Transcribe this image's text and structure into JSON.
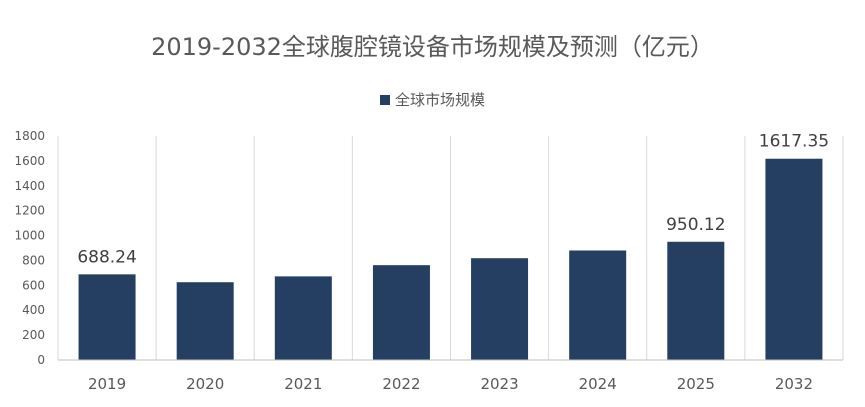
{
  "chart_data": {
    "type": "bar",
    "title": "2019-2032全球腹腔镜设备市场规模及预测（亿元）",
    "categories": [
      "2019",
      "2020",
      "2021",
      "2022",
      "2023",
      "2024",
      "2025",
      "2032"
    ],
    "series": [
      {
        "name": "全球市场规模",
        "values": [
          688.24,
          625,
          672,
          762,
          818,
          880,
          950.12,
          1617.35
        ],
        "data_labels": [
          "688.24",
          null,
          null,
          null,
          null,
          null,
          "950.12",
          "1617.35"
        ]
      }
    ],
    "xlabel": "",
    "ylabel": "",
    "ylim": [
      0,
      1800
    ],
    "yticks": [
      0,
      200,
      400,
      600,
      800,
      1000,
      1200,
      1400,
      1600,
      1800
    ],
    "grid": "vertical",
    "legend": "top-center",
    "colors": {
      "bar": "#243F61",
      "grid": "#D9D9D9",
      "axis": "#BFBFBF",
      "text": "#595959"
    }
  }
}
